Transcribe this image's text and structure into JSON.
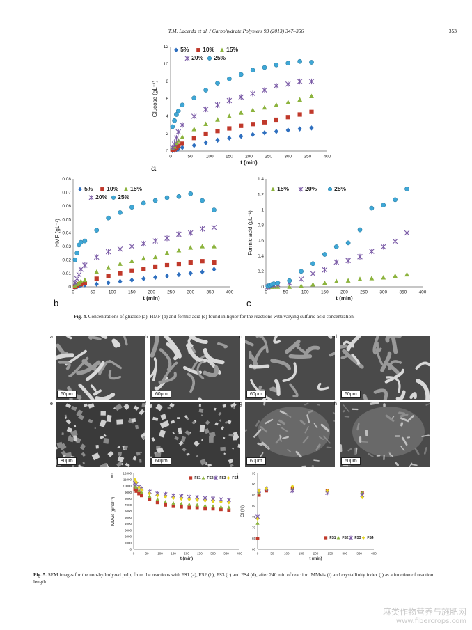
{
  "header": {
    "journal": "T.M. Lacerda et al. / Carbohydrate Polymers 93 (2013) 347–356",
    "page": "353"
  },
  "fig4": {
    "caption_label": "Fig. 4.",
    "caption_text": "Concentrations of glucose (a), HMF (b) and formic acid (c) found in liquor for the reactions with varying sulfuric acid concentration."
  },
  "fig5": {
    "caption_label": "Fig. 5.",
    "caption_text": "SEM images for the non-hydrolyzed pulp, from the reactions with FS1 (a), FS2 (b), FS3 (c) and FS4 (d), after 240 min of reaction. MMvis (i) and crystallinity index (j) as a function of reaction length.",
    "sem_panels": [
      {
        "letter": "a",
        "scale": "60μm"
      },
      {
        "letter": "b",
        "scale": "60μm"
      },
      {
        "letter": "c",
        "scale": "60μm"
      },
      {
        "letter": "d",
        "scale": "60μm"
      },
      {
        "letter": "e",
        "scale": "80μm"
      },
      {
        "letter": "f",
        "scale": "60μm"
      },
      {
        "letter": "g",
        "scale": "60μm"
      },
      {
        "letter": "h",
        "scale": "60μm"
      }
    ]
  },
  "watermark": {
    "line1": "麻类作物营养与施肥网",
    "line2": "www.fibercrops.com"
  },
  "chart_data": [
    {
      "id": "a",
      "type": "scatter",
      "panel_letter": "a",
      "xlabel": "t (min)",
      "ylabel": "Glucose (gL⁻¹)",
      "xlim": [
        0,
        400
      ],
      "ylim": [
        0,
        12
      ],
      "xticks": [
        0,
        50,
        100,
        150,
        200,
        250,
        300,
        350,
        400
      ],
      "yticks": [
        0,
        2,
        4,
        6,
        8,
        10,
        12
      ],
      "legend_rows": [
        [
          "5%",
          "10%",
          "15%"
        ],
        [
          "20%",
          "25%"
        ]
      ],
      "series": [
        {
          "name": "5%",
          "marker": "diamond",
          "color": "#2e6fbf",
          "x": [
            5,
            10,
            15,
            20,
            30,
            60,
            90,
            120,
            150,
            180,
            210,
            240,
            270,
            300,
            330,
            360
          ],
          "y": [
            0.05,
            0.1,
            0.15,
            0.25,
            0.4,
            0.65,
            0.95,
            1.25,
            1.5,
            1.7,
            1.9,
            2.1,
            2.25,
            2.4,
            2.55,
            2.65
          ]
        },
        {
          "name": "10%",
          "marker": "square",
          "color": "#c0392b",
          "x": [
            5,
            10,
            15,
            20,
            30,
            60,
            90,
            120,
            150,
            180,
            210,
            240,
            270,
            300,
            330,
            360
          ],
          "y": [
            0.1,
            0.2,
            0.4,
            0.6,
            0.85,
            1.5,
            2.0,
            2.3,
            2.6,
            2.9,
            3.1,
            3.3,
            3.6,
            3.9,
            4.2,
            4.5
          ]
        },
        {
          "name": "15%",
          "marker": "triangle",
          "color": "#8cb33d",
          "x": [
            5,
            10,
            15,
            20,
            30,
            60,
            90,
            120,
            150,
            180,
            210,
            240,
            270,
            300,
            330,
            360
          ],
          "y": [
            0.3,
            0.5,
            0.9,
            1.2,
            1.6,
            2.5,
            3.1,
            3.6,
            4.0,
            4.4,
            4.7,
            5.0,
            5.3,
            5.6,
            5.9,
            6.3
          ]
        },
        {
          "name": "20%",
          "marker": "star",
          "color": "#7a5aa6",
          "x": [
            5,
            10,
            15,
            20,
            30,
            60,
            90,
            120,
            150,
            180,
            210,
            240,
            270,
            300,
            330,
            360
          ],
          "y": [
            0.4,
            0.8,
            1.5,
            2.2,
            3.0,
            4.0,
            4.8,
            5.3,
            5.8,
            6.2,
            6.6,
            7.0,
            7.5,
            7.7,
            8.0,
            8.0
          ]
        },
        {
          "name": "25%",
          "marker": "circle",
          "color": "#3fa7d6",
          "x": [
            5,
            10,
            15,
            20,
            30,
            60,
            90,
            120,
            150,
            180,
            210,
            240,
            270,
            300,
            330,
            360
          ],
          "y": [
            2.8,
            3.5,
            4.2,
            4.6,
            5.3,
            6.1,
            7.0,
            7.8,
            8.3,
            8.8,
            9.3,
            9.6,
            9.9,
            10.1,
            10.3,
            10.2
          ]
        }
      ]
    },
    {
      "id": "b",
      "type": "scatter",
      "panel_letter": "b",
      "xlabel": "t (min)",
      "ylabel": "HMF (gL⁻¹)",
      "xlim": [
        0,
        400
      ],
      "ylim": [
        0,
        0.08
      ],
      "xticks": [
        0,
        50,
        100,
        150,
        200,
        250,
        300,
        350,
        400
      ],
      "yticks": [
        0,
        0.01,
        0.02,
        0.03,
        0.04,
        0.05,
        0.06,
        0.07,
        0.08
      ],
      "legend_rows": [
        [
          "5%",
          "10%",
          "15%"
        ],
        [
          "20%",
          "25%"
        ]
      ],
      "series": [
        {
          "name": "5%",
          "marker": "diamond",
          "color": "#2e6fbf",
          "x": [
            5,
            10,
            15,
            20,
            30,
            60,
            90,
            120,
            150,
            180,
            210,
            240,
            270,
            300,
            330,
            360
          ],
          "y": [
            0.0,
            0.0,
            0.0005,
            0.001,
            0.0015,
            0.002,
            0.003,
            0.004,
            0.005,
            0.006,
            0.007,
            0.008,
            0.009,
            0.01,
            0.011,
            0.013
          ]
        },
        {
          "name": "10%",
          "marker": "square",
          "color": "#c0392b",
          "x": [
            5,
            10,
            15,
            20,
            30,
            60,
            90,
            120,
            150,
            180,
            210,
            240,
            270,
            300,
            330,
            360
          ],
          "y": [
            0.0,
            0.001,
            0.002,
            0.002,
            0.003,
            0.006,
            0.008,
            0.01,
            0.012,
            0.013,
            0.015,
            0.016,
            0.017,
            0.018,
            0.019,
            0.018
          ]
        },
        {
          "name": "15%",
          "marker": "triangle",
          "color": "#8cb33d",
          "x": [
            5,
            10,
            15,
            20,
            30,
            60,
            90,
            120,
            150,
            180,
            210,
            240,
            270,
            300,
            330,
            360
          ],
          "y": [
            0.001,
            0.002,
            0.003,
            0.004,
            0.005,
            0.011,
            0.014,
            0.017,
            0.019,
            0.021,
            0.022,
            0.025,
            0.027,
            0.029,
            0.03,
            0.03
          ]
        },
        {
          "name": "20%",
          "marker": "star",
          "color": "#7a5aa6",
          "x": [
            5,
            10,
            15,
            20,
            30,
            60,
            90,
            120,
            150,
            180,
            210,
            240,
            270,
            300,
            330,
            360
          ],
          "y": [
            0.003,
            0.006,
            0.009,
            0.013,
            0.016,
            0.022,
            0.026,
            0.028,
            0.03,
            0.032,
            0.034,
            0.036,
            0.039,
            0.04,
            0.043,
            0.044
          ]
        },
        {
          "name": "25%",
          "marker": "circle",
          "color": "#3fa7d6",
          "x": [
            5,
            10,
            15,
            20,
            30,
            60,
            90,
            120,
            150,
            180,
            210,
            240,
            270,
            300,
            330,
            360
          ],
          "y": [
            0.02,
            0.025,
            0.031,
            0.033,
            0.034,
            0.042,
            0.051,
            0.055,
            0.059,
            0.062,
            0.064,
            0.066,
            0.067,
            0.069,
            0.064,
            0.057
          ]
        }
      ]
    },
    {
      "id": "c",
      "type": "scatter",
      "panel_letter": "c",
      "xlabel": "t (min)",
      "ylabel": "Formic acid (gL⁻¹)",
      "xlim": [
        0,
        400
      ],
      "ylim": [
        0,
        1.4
      ],
      "xticks": [
        0,
        50,
        100,
        150,
        200,
        250,
        300,
        350,
        400
      ],
      "yticks": [
        0,
        0.2,
        0.4,
        0.6,
        0.8,
        1,
        1.2,
        1.4
      ],
      "legend_rows": [
        [
          "15%",
          "20%",
          "25%"
        ]
      ],
      "series": [
        {
          "name": "15%",
          "marker": "triangle",
          "color": "#8cb33d",
          "x": [
            5,
            10,
            15,
            20,
            30,
            60,
            90,
            120,
            150,
            180,
            210,
            240,
            270,
            300,
            330,
            360
          ],
          "y": [
            0,
            0,
            0,
            0,
            0,
            0,
            0.01,
            0.03,
            0.05,
            0.07,
            0.08,
            0.1,
            0.11,
            0.12,
            0.14,
            0.16
          ]
        },
        {
          "name": "20%",
          "marker": "star",
          "color": "#7a5aa6",
          "x": [
            5,
            10,
            15,
            20,
            30,
            60,
            90,
            120,
            150,
            180,
            210,
            240,
            270,
            300,
            330,
            360
          ],
          "y": [
            0,
            0.01,
            0.02,
            0.02,
            0.03,
            0.05,
            0.1,
            0.17,
            0.22,
            0.32,
            0.34,
            0.39,
            0.46,
            0.52,
            0.59,
            0.7
          ]
        },
        {
          "name": "25%",
          "marker": "circle",
          "color": "#3fa7d6",
          "x": [
            5,
            10,
            15,
            20,
            30,
            60,
            90,
            120,
            150,
            180,
            210,
            240,
            270,
            300,
            330,
            360
          ],
          "y": [
            0.01,
            0.02,
            0.03,
            0.04,
            0.05,
            0.08,
            0.2,
            0.3,
            0.42,
            0.52,
            0.57,
            0.74,
            1.02,
            1.06,
            1.13,
            1.27
          ]
        }
      ]
    },
    {
      "id": "i",
      "type": "scatter",
      "panel_letter": "i",
      "xlabel": "t (min)",
      "ylabel": "MMvis (gmol⁻¹)",
      "xlim": [
        0,
        400
      ],
      "ylim": [
        0,
        12000
      ],
      "xticks": [
        0,
        50,
        100,
        150,
        200,
        250,
        300,
        350,
        400
      ],
      "yticks": [
        0,
        1000,
        2000,
        3000,
        4000,
        5000,
        6000,
        7000,
        8000,
        9000,
        10000,
        11000,
        12000
      ],
      "legend_rows": [
        [
          "FS1",
          "FS2",
          "FS3",
          "FS4"
        ]
      ],
      "series": [
        {
          "name": "FS1",
          "marker": "square",
          "color": "#c0392b",
          "x": [
            5,
            10,
            20,
            30,
            60,
            90,
            120,
            150,
            180,
            210,
            240,
            270,
            300,
            330,
            360
          ],
          "y": [
            9500,
            9200,
            8800,
            8500,
            7900,
            7400,
            7000,
            6800,
            6700,
            6600,
            6600,
            6400,
            6400,
            6300,
            6200
          ]
        },
        {
          "name": "FS2",
          "marker": "triangle",
          "color": "#8cb33d",
          "x": [
            5,
            10,
            20,
            30,
            60,
            90,
            120,
            150,
            180,
            210,
            240,
            270,
            300,
            330,
            360
          ],
          "y": [
            10000,
            9800,
            9300,
            9000,
            8400,
            7900,
            7500,
            7300,
            7200,
            7100,
            7000,
            6900,
            6800,
            6700,
            6600
          ]
        },
        {
          "name": "FS3",
          "marker": "star",
          "color": "#7a5aa6",
          "x": [
            5,
            10,
            20,
            30,
            60,
            90,
            120,
            150,
            180,
            210,
            240,
            270,
            300,
            330,
            360
          ],
          "y": [
            10500,
            10300,
            9900,
            9600,
            9100,
            8800,
            8700,
            8500,
            8400,
            8300,
            8200,
            8100,
            8000,
            7900,
            7800
          ]
        },
        {
          "name": "FS4",
          "marker": "diamond",
          "color": "#e6d31e",
          "x": [
            5,
            10,
            20,
            30,
            60,
            90,
            120,
            150,
            180,
            210,
            240,
            270,
            300,
            330,
            360
          ],
          "y": [
            11000,
            10600,
            9800,
            9400,
            8800,
            8500,
            8300,
            8100,
            8000,
            7900,
            7800,
            7700,
            7600,
            7500,
            7400
          ]
        }
      ]
    },
    {
      "id": "j",
      "type": "scatter",
      "panel_letter": "j",
      "xlabel": "t (min)",
      "ylabel": "CI (%)",
      "xlim": [
        0,
        400
      ],
      "ylim": [
        60,
        95
      ],
      "xticks": [
        0,
        50,
        100,
        150,
        200,
        250,
        300,
        350,
        400
      ],
      "yticks": [
        60,
        65,
        70,
        75,
        80,
        85,
        90,
        95
      ],
      "legend_rows": [
        [
          "FS1",
          "FS2",
          "FS3",
          "FS4"
        ]
      ],
      "series": [
        {
          "name": "FS1",
          "marker": "square",
          "color": "#c0392b",
          "x": [
            0,
            5,
            30,
            120,
            240,
            360
          ],
          "y": [
            65,
            85,
            87,
            88,
            87,
            86
          ]
        },
        {
          "name": "FS2",
          "marker": "triangle",
          "color": "#8cb33d",
          "x": [
            0,
            5,
            30,
            120,
            240,
            360
          ],
          "y": [
            72,
            86,
            88,
            88,
            87,
            86
          ]
        },
        {
          "name": "FS3",
          "marker": "star",
          "color": "#7a5aa6",
          "x": [
            0,
            5,
            30,
            120,
            240,
            360
          ],
          "y": [
            75,
            87,
            88,
            87,
            86,
            85
          ]
        },
        {
          "name": "FS4",
          "marker": "diamond",
          "color": "#e6d31e",
          "x": [
            0,
            5,
            30,
            120,
            240,
            360
          ],
          "y": [
            74,
            87,
            88,
            89,
            87,
            84
          ]
        }
      ]
    }
  ]
}
